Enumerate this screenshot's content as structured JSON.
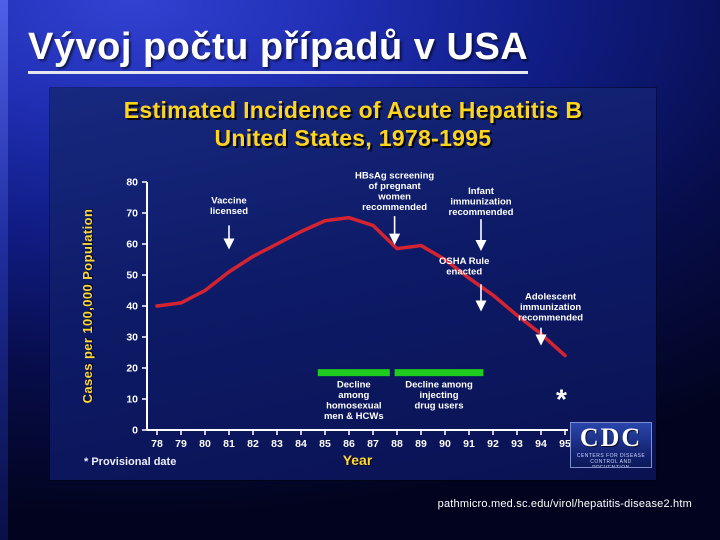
{
  "slide": {
    "title": "Vývoj počtu případů v USA",
    "source_url": "pathmicro.med.sc.edu/virol/hepatitis-disease2.htm"
  },
  "chart": {
    "title_line1": "Estimated Incidence of Acute Hepatitis B",
    "title_line2": "United States, 1978-1995",
    "ylabel": "Cases per 100,000 Population",
    "xlabel": "Year",
    "footnote": "* Provisional date",
    "cdc_logo": {
      "acronym": "CDC",
      "caption": "CENTERS FOR DISEASE CONTROL AND PREVENTION"
    }
  },
  "colors": {
    "line_red": "#d42432",
    "bar_green": "#1ecb1e",
    "title_yellow": "#ffd41e",
    "axis_white": "#ffffff",
    "background_blue": "#0d1a66"
  },
  "chart_data": {
    "type": "line",
    "title": "Estimated Incidence of Acute Hepatitis B, United States, 1978-1995",
    "xlabel": "Year",
    "ylabel": "Cases per 100,000 Population",
    "ylim": [
      0,
      80
    ],
    "yticks": [
      0,
      10,
      20,
      30,
      40,
      50,
      60,
      70,
      80
    ],
    "x": [
      1978,
      1979,
      1980,
      1981,
      1982,
      1983,
      1984,
      1985,
      1986,
      1987,
      1988,
      1989,
      1990,
      1991,
      1992,
      1993,
      1994,
      1995
    ],
    "xtick_labels": [
      "78",
      "79",
      "80",
      "81",
      "82",
      "83",
      "84",
      "85",
      "86",
      "87",
      "88",
      "89",
      "90",
      "91",
      "92",
      "93",
      "94",
      "95"
    ],
    "values": [
      40,
      41,
      45,
      51,
      56,
      60,
      64,
      67.5,
      68.5,
      66,
      58.5,
      59.5,
      55,
      49,
      43.5,
      37,
      31,
      24
    ],
    "line_color": "#d42432",
    "bar_color": "#1ecb1e",
    "annotations": [
      {
        "lines": [
          "Vaccine",
          "licensed"
        ],
        "year": 1981.0,
        "top_value": 76,
        "arrow": {
          "year": 1981.0,
          "from": 66,
          "to": 59
        }
      },
      {
        "lines": [
          "HBsAg screening",
          "of pregnant",
          "women",
          "recommended"
        ],
        "year": 1987.9,
        "top_value": 84,
        "arrow": {
          "year": 1987.9,
          "from": 69,
          "to": 60.5
        }
      },
      {
        "lines": [
          "Infant",
          "immunization",
          "recommended"
        ],
        "year": 1991.5,
        "top_value": 79,
        "arrow": {
          "year": 1991.5,
          "from": 68,
          "to": 58.5
        }
      },
      {
        "lines": [
          "OSHA Rule",
          "enacted"
        ],
        "year": 1990.8,
        "top_value": 56.5,
        "arrow": {
          "year": 1991.5,
          "from": 47,
          "to": 39
        }
      },
      {
        "lines": [
          "Adolescent",
          "immunization",
          "recommended"
        ],
        "year": 1994.4,
        "top_value": 45,
        "arrow": {
          "year": 1994.0,
          "from": 33,
          "to": 28
        }
      }
    ],
    "decline_bars": [
      {
        "from_year": 1984.7,
        "to_year": 1987.7,
        "value": 18.5,
        "lines": [
          "Decline",
          "among",
          "homosexual",
          "men & HCWs"
        ]
      },
      {
        "from_year": 1987.9,
        "to_year": 1991.6,
        "value": 18.5,
        "lines": [
          "Decline among",
          "injecting",
          "drug users"
        ]
      }
    ],
    "provisional_marker": {
      "symbol": "*",
      "year": 1994.85,
      "value": 7
    }
  }
}
